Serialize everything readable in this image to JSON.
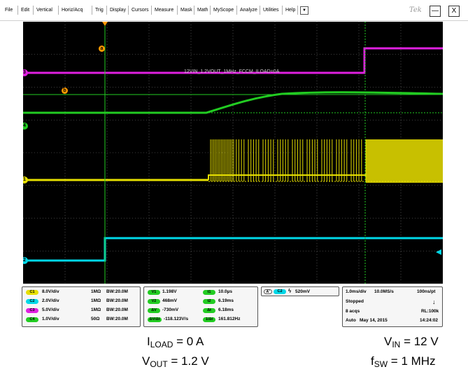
{
  "menu": {
    "items": [
      "File",
      "Edit",
      "Vertical",
      "Horiz/Acq",
      "Trig",
      "Display",
      "Cursors",
      "Measure",
      "Mask",
      "Math",
      "MyScope",
      "Analyze",
      "Utilities",
      "Help"
    ],
    "dropdown_glyph": "▼",
    "logo": "Tek",
    "minimize_glyph": "—",
    "close_glyph": "X"
  },
  "screen": {
    "waveform_title": "12VIN_1.2VOUT_1MHz_FCCM_ILOAD=0A",
    "cursor_a_label": "a",
    "cursor_b_label": "b",
    "channel_markers": [
      "3",
      "4",
      "1",
      "2"
    ],
    "colors": {
      "ch1": "#e6df00",
      "ch2": "#00d8e8",
      "ch3": "#e020e0",
      "ch4": "#22cc22",
      "cursor": "#ff9a00",
      "grid": "#7a7a7a"
    }
  },
  "channels": [
    {
      "badge": "C1",
      "scale": "8.0V/div",
      "impedance": "1MΩ",
      "bw": "BW:20.0M",
      "color": "#e6df00"
    },
    {
      "badge": "C2",
      "scale": "2.0V/div",
      "impedance": "1MΩ",
      "bw": "BW:20.0M",
      "color": "#00d8e8"
    },
    {
      "badge": "C3",
      "scale": "5.0V/div",
      "impedance": "1MΩ",
      "bw": "BW:20.0M",
      "color": "#e020e0"
    },
    {
      "badge": "C4",
      "scale": "1.0V/div",
      "impedance": "50Ω",
      "bw": "BW:20.0M",
      "color": "#22cc22"
    }
  ],
  "cursors": {
    "v1_label": "V1",
    "v1_value": "1.198V",
    "v2_label": "V2",
    "v2_value": "468mV",
    "dv_label": "ΔV",
    "dv_value": "-730mV",
    "dvdt_label": "ΔV/Δt",
    "dvdt_value": "-118.123V/s",
    "t1_label": "t1",
    "t1_value": "10.0µs",
    "t2_label": "t2",
    "t2_value": "6.19ms",
    "dt_label": "Δt",
    "dt_value": "6.18ms",
    "freq_label": "1/Δt",
    "freq_value": "161.812Hz"
  },
  "trigger": {
    "badge_a": "A'",
    "badge_ch": "C2",
    "slope_glyph": "ϟ",
    "level": "520mV"
  },
  "acquisition": {
    "timebase": "1.0ms/div",
    "sample_rate": "10.0MS/s",
    "resolution": "100ns/pt",
    "state": "Stopped",
    "acqs": "8 acqs",
    "record_length": "RL:100k",
    "mode": "Auto",
    "date": "May 14, 2015",
    "time": "14:24:02",
    "indicator_glyph": "↓"
  },
  "annotations": {
    "iload_main": "I",
    "iload_sub": "LOAD",
    "iload_rest": " = 0 A",
    "vout_main": "V",
    "vout_sub": "OUT",
    "vout_rest": " = 1.2 V",
    "vin_main": "V",
    "vin_sub": "IN",
    "vin_rest": " = 12 V",
    "fsw_main": "f",
    "fsw_sub": "SW",
    "fsw_rest": " = 1 MHz"
  }
}
